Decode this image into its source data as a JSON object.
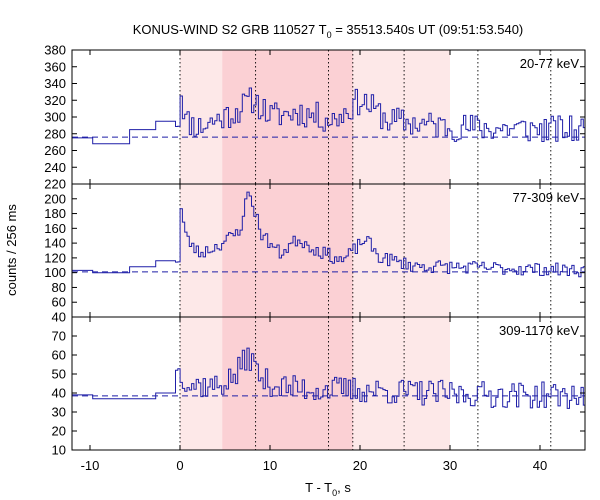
{
  "chart_data": {
    "type": "line",
    "title_main": "KONUS-WIND S2 GRB 110527 T",
    "title_sub": "0",
    "title_rest": " = 35513.540s UT (09:51:53.540)",
    "xlabel_main": "T - T",
    "xlabel_sub": "0",
    "xlabel_rest": ", s",
    "ylabel": "counts / 256 ms",
    "xlim": [
      -12,
      45
    ],
    "x_ticks": [
      -10,
      0,
      10,
      20,
      30,
      40
    ],
    "bin_width_s": 0.256,
    "shaded_intervals": {
      "light": [
        0,
        30
      ],
      "dark": [
        4.7,
        19.2
      ]
    },
    "vertical_lines": [
      0,
      8.4,
      16.5,
      19.2,
      24.9,
      33.1,
      41.2
    ],
    "panels": [
      {
        "band": "20-77 keV",
        "ylim": [
          220,
          380
        ],
        "y_ticks": [
          220,
          240,
          260,
          280,
          300,
          320,
          340,
          360,
          380
        ],
        "background": 276,
        "pre_burst_steps": [
          {
            "x0": -12,
            "x1": -9.7,
            "y": 275
          },
          {
            "x0": -9.7,
            "x1": -5.6,
            "y": 268
          },
          {
            "x0": -5.6,
            "x1": -2.7,
            "y": 285
          },
          {
            "x0": -2.7,
            "x1": -0.5,
            "y": 295
          }
        ],
        "curve_seed": 11,
        "burst_profile": [
          {
            "t": 0,
            "v": 55
          },
          {
            "t": 0.5,
            "v": 20
          },
          {
            "t": 2,
            "v": 12
          },
          {
            "t": 6,
            "v": 30
          },
          {
            "t": 8,
            "v": 45
          },
          {
            "t": 10,
            "v": 25
          },
          {
            "t": 13,
            "v": 30
          },
          {
            "t": 17,
            "v": 20
          },
          {
            "t": 20,
            "v": 45
          },
          {
            "t": 23,
            "v": 20
          },
          {
            "t": 30,
            "v": 12
          },
          {
            "t": 45,
            "v": 8
          }
        ],
        "noise": 17
      },
      {
        "band": "77-309 keV",
        "ylim": [
          40,
          220
        ],
        "y_ticks": [
          40,
          60,
          80,
          100,
          120,
          140,
          160,
          180,
          200,
          220
        ],
        "background": 101,
        "pre_burst_steps": [
          {
            "x0": -12,
            "x1": -9.7,
            "y": 103
          },
          {
            "x0": -9.7,
            "x1": -5.6,
            "y": 100
          },
          {
            "x0": -5.6,
            "x1": -2.7,
            "y": 108
          },
          {
            "x0": -2.7,
            "x1": -0.5,
            "y": 116
          }
        ],
        "curve_seed": 23,
        "burst_profile": [
          {
            "t": 0,
            "v": 85
          },
          {
            "t": 0.6,
            "v": 45
          },
          {
            "t": 2,
            "v": 25
          },
          {
            "t": 4,
            "v": 35
          },
          {
            "t": 6.5,
            "v": 55
          },
          {
            "t": 7.5,
            "v": 110
          },
          {
            "t": 9,
            "v": 50
          },
          {
            "t": 11,
            "v": 25
          },
          {
            "t": 13,
            "v": 45
          },
          {
            "t": 15,
            "v": 30
          },
          {
            "t": 18,
            "v": 15
          },
          {
            "t": 20.5,
            "v": 45
          },
          {
            "t": 22,
            "v": 20
          },
          {
            "t": 26,
            "v": 8
          },
          {
            "t": 45,
            "v": 2
          }
        ],
        "noise": 9
      },
      {
        "band": "309-1170 keV",
        "ylim": [
          10,
          80
        ],
        "y_ticks": [
          10,
          20,
          30,
          40,
          50,
          60,
          70
        ],
        "background": 38.5,
        "pre_burst_steps": [
          {
            "x0": -12,
            "x1": -9.7,
            "y": 39
          },
          {
            "x0": -9.7,
            "x1": -2.7,
            "y": 37
          },
          {
            "x0": -2.7,
            "x1": -0.5,
            "y": 40
          }
        ],
        "curve_seed": 37,
        "burst_profile": [
          {
            "t": 0,
            "v": 12
          },
          {
            "t": 1,
            "v": 6
          },
          {
            "t": 4,
            "v": 5
          },
          {
            "t": 6,
            "v": 10
          },
          {
            "t": 7.5,
            "v": 22
          },
          {
            "t": 9,
            "v": 8
          },
          {
            "t": 12,
            "v": 4
          },
          {
            "t": 20,
            "v": 3
          },
          {
            "t": 30,
            "v": 1
          },
          {
            "t": 45,
            "v": 0
          }
        ],
        "noise": 7
      }
    ]
  }
}
